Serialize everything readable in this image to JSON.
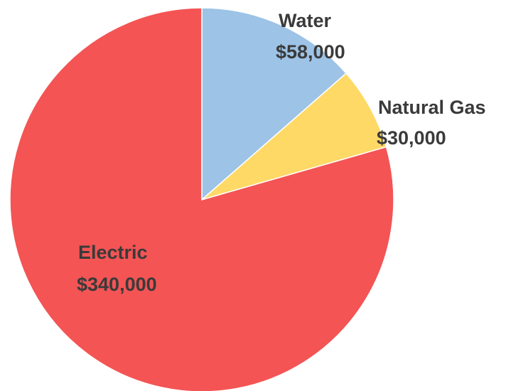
{
  "chart_data": {
    "type": "pie",
    "title": "",
    "slices": [
      {
        "label": "Water",
        "value_label": "$58,000",
        "value": 58000,
        "color": "#9dc3e6"
      },
      {
        "label": "Natural Gas",
        "value_label": "$30,000",
        "value": 30000,
        "color": "#ffd966"
      },
      {
        "label": "Electric",
        "value_label": "$340,000",
        "value": 340000,
        "color": "#f45454"
      }
    ],
    "start": "12 o'clock",
    "direction": "clockwise",
    "legend": "none",
    "data_labels": "outside for small slices, inside for large slice"
  }
}
